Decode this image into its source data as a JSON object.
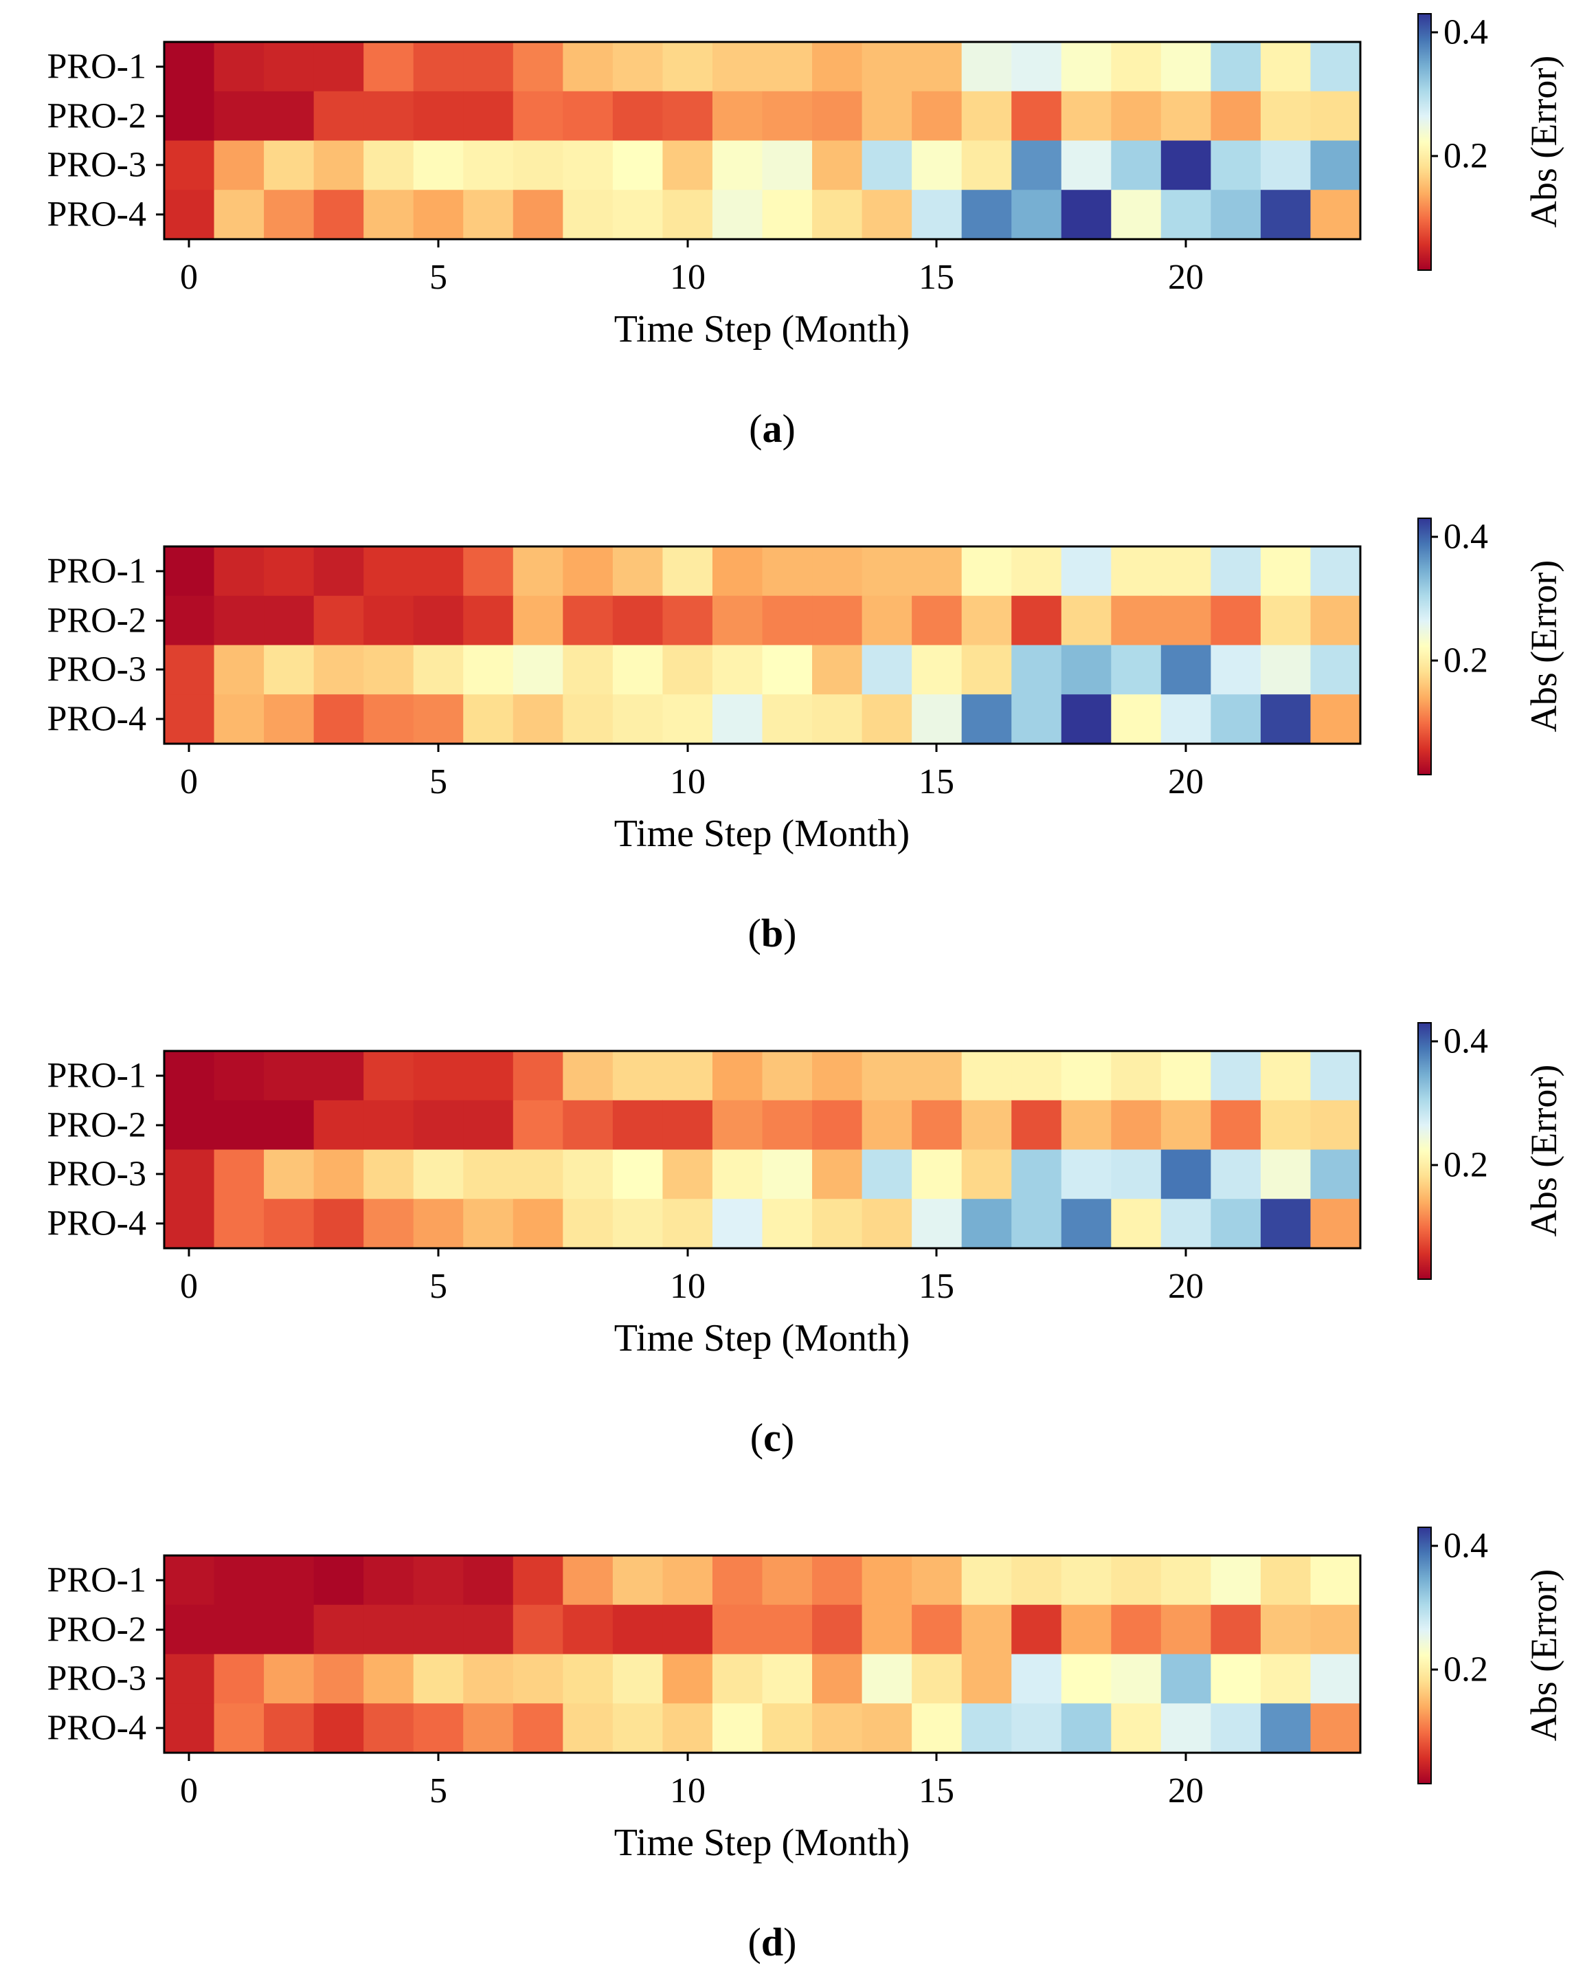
{
  "chart_data": [
    {
      "type": "heatmap",
      "panel_label": "(a)",
      "label_letter": "a",
      "xlabel": "Time Step (Month)",
      "rows": [
        "PRO-1",
        "PRO-2",
        "PRO-3",
        "PRO-4"
      ],
      "x_ticks": [
        0,
        5,
        10,
        15,
        20
      ],
      "xlim": [
        -0.5,
        23.5
      ],
      "colorbar": {
        "label": "Abs (Error)",
        "ticks": [
          "0.4",
          "0.2"
        ],
        "tick_values": [
          0.4,
          0.2
        ],
        "range": [
          0.03,
          0.42
        ],
        "colormap": "RdYlBu"
      },
      "values": [
        [
          0.035,
          0.055,
          0.06,
          0.06,
          0.11,
          0.09,
          0.09,
          0.12,
          0.16,
          0.17,
          0.18,
          0.17,
          0.17,
          0.15,
          0.16,
          0.16,
          0.25,
          0.26,
          0.23,
          0.21,
          0.23,
          0.3,
          0.21,
          0.29
        ],
        [
          0.035,
          0.045,
          0.045,
          0.08,
          0.08,
          0.075,
          0.075,
          0.11,
          0.105,
          0.09,
          0.095,
          0.14,
          0.135,
          0.13,
          0.16,
          0.14,
          0.18,
          0.1,
          0.17,
          0.155,
          0.17,
          0.14,
          0.19,
          0.185
        ],
        [
          0.07,
          0.14,
          0.18,
          0.16,
          0.2,
          0.22,
          0.21,
          0.205,
          0.21,
          0.225,
          0.17,
          0.23,
          0.24,
          0.16,
          0.29,
          0.23,
          0.2,
          0.36,
          0.26,
          0.31,
          0.42,
          0.3,
          0.28,
          0.34
        ],
        [
          0.065,
          0.165,
          0.13,
          0.1,
          0.16,
          0.145,
          0.17,
          0.135,
          0.205,
          0.21,
          0.195,
          0.24,
          0.22,
          0.19,
          0.17,
          0.28,
          0.37,
          0.34,
          0.42,
          0.235,
          0.3,
          0.32,
          0.41,
          0.15
        ]
      ]
    },
    {
      "type": "heatmap",
      "panel_label": "(b)",
      "label_letter": "b",
      "xlabel": "Time Step (Month)",
      "rows": [
        "PRO-1",
        "PRO-2",
        "PRO-3",
        "PRO-4"
      ],
      "x_ticks": [
        0,
        5,
        10,
        15,
        20
      ],
      "xlim": [
        -0.5,
        23.5
      ],
      "colorbar": {
        "label": "Abs (Error)",
        "ticks": [
          "0.4",
          "0.2"
        ],
        "tick_values": [
          0.4,
          0.2
        ],
        "range": [
          0.03,
          0.42
        ],
        "colormap": "RdYlBu"
      },
      "values": [
        [
          0.035,
          0.06,
          0.065,
          0.055,
          0.07,
          0.07,
          0.1,
          0.16,
          0.145,
          0.165,
          0.2,
          0.145,
          0.155,
          0.155,
          0.16,
          0.16,
          0.22,
          0.21,
          0.27,
          0.21,
          0.21,
          0.28,
          0.22,
          0.28
        ],
        [
          0.04,
          0.05,
          0.05,
          0.075,
          0.065,
          0.06,
          0.075,
          0.15,
          0.09,
          0.08,
          0.095,
          0.13,
          0.12,
          0.12,
          0.155,
          0.12,
          0.17,
          0.08,
          0.18,
          0.135,
          0.135,
          0.11,
          0.19,
          0.16
        ],
        [
          0.08,
          0.16,
          0.19,
          0.17,
          0.175,
          0.2,
          0.22,
          0.235,
          0.2,
          0.22,
          0.195,
          0.21,
          0.225,
          0.165,
          0.28,
          0.215,
          0.19,
          0.31,
          0.33,
          0.3,
          0.37,
          0.27,
          0.25,
          0.29
        ],
        [
          0.08,
          0.155,
          0.14,
          0.1,
          0.12,
          0.125,
          0.185,
          0.17,
          0.195,
          0.205,
          0.21,
          0.26,
          0.205,
          0.2,
          0.18,
          0.25,
          0.37,
          0.31,
          0.42,
          0.22,
          0.27,
          0.31,
          0.41,
          0.145
        ]
      ]
    },
    {
      "type": "heatmap",
      "panel_label": "(c)",
      "label_letter": "c",
      "xlabel": "Time Step (Month)",
      "rows": [
        "PRO-1",
        "PRO-2",
        "PRO-3",
        "PRO-4"
      ],
      "x_ticks": [
        0,
        5,
        10,
        15,
        20
      ],
      "xlim": [
        -0.5,
        23.5
      ],
      "colorbar": {
        "label": "Abs (Error)",
        "ticks": [
          "0.4",
          "0.2"
        ],
        "tick_values": [
          0.4,
          0.2
        ],
        "range": [
          0.03,
          0.42
        ],
        "colormap": "RdYlBu"
      },
      "values": [
        [
          0.035,
          0.04,
          0.045,
          0.045,
          0.075,
          0.07,
          0.07,
          0.1,
          0.165,
          0.18,
          0.18,
          0.145,
          0.165,
          0.15,
          0.165,
          0.165,
          0.21,
          0.21,
          0.22,
          0.205,
          0.22,
          0.28,
          0.21,
          0.28
        ],
        [
          0.035,
          0.035,
          0.035,
          0.065,
          0.065,
          0.06,
          0.06,
          0.11,
          0.095,
          0.08,
          0.08,
          0.13,
          0.12,
          0.11,
          0.155,
          0.12,
          0.165,
          0.09,
          0.16,
          0.14,
          0.16,
          0.115,
          0.185,
          0.18
        ],
        [
          0.06,
          0.11,
          0.165,
          0.15,
          0.18,
          0.205,
          0.19,
          0.19,
          0.205,
          0.225,
          0.17,
          0.215,
          0.23,
          0.155,
          0.29,
          0.22,
          0.18,
          0.31,
          0.275,
          0.28,
          0.38,
          0.28,
          0.24,
          0.32
        ],
        [
          0.06,
          0.11,
          0.1,
          0.085,
          0.125,
          0.14,
          0.16,
          0.145,
          0.195,
          0.205,
          0.195,
          0.265,
          0.21,
          0.19,
          0.18,
          0.26,
          0.34,
          0.31,
          0.37,
          0.21,
          0.28,
          0.31,
          0.41,
          0.14
        ]
      ]
    },
    {
      "type": "heatmap",
      "panel_label": "(d)",
      "label_letter": "d",
      "xlabel": "Time Step (Month)",
      "rows": [
        "PRO-1",
        "PRO-2",
        "PRO-3",
        "PRO-4"
      ],
      "x_ticks": [
        0,
        5,
        10,
        15,
        20
      ],
      "xlim": [
        -0.5,
        23.5
      ],
      "colorbar": {
        "label": "Abs (Error)",
        "ticks": [
          "0.4",
          "0.2"
        ],
        "tick_values": [
          0.4,
          0.2
        ],
        "range": [
          0.03,
          0.42
        ],
        "colormap": "RdYlBu"
      },
      "values": [
        [
          0.045,
          0.04,
          0.04,
          0.035,
          0.045,
          0.05,
          0.045,
          0.075,
          0.135,
          0.165,
          0.155,
          0.12,
          0.135,
          0.12,
          0.145,
          0.155,
          0.205,
          0.195,
          0.205,
          0.195,
          0.205,
          0.23,
          0.19,
          0.22
        ],
        [
          0.04,
          0.04,
          0.04,
          0.055,
          0.055,
          0.055,
          0.055,
          0.09,
          0.075,
          0.065,
          0.065,
          0.115,
          0.115,
          0.095,
          0.145,
          0.115,
          0.155,
          0.075,
          0.145,
          0.115,
          0.135,
          0.095,
          0.165,
          0.16
        ],
        [
          0.06,
          0.11,
          0.14,
          0.125,
          0.15,
          0.185,
          0.17,
          0.175,
          0.185,
          0.205,
          0.145,
          0.195,
          0.21,
          0.14,
          0.235,
          0.195,
          0.155,
          0.27,
          0.225,
          0.235,
          0.32,
          0.225,
          0.21,
          0.26
        ],
        [
          0.06,
          0.115,
          0.09,
          0.07,
          0.095,
          0.105,
          0.13,
          0.11,
          0.18,
          0.19,
          0.175,
          0.22,
          0.185,
          0.17,
          0.165,
          0.22,
          0.29,
          0.28,
          0.31,
          0.21,
          0.26,
          0.28,
          0.36,
          0.13
        ]
      ]
    }
  ]
}
